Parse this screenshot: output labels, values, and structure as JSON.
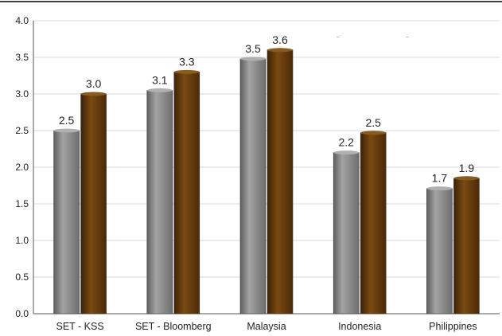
{
  "chart_data": {
    "type": "bar",
    "categories": [
      "SET - KSS",
      "SET - Bloomberg",
      "Malaysia",
      "Indonesia",
      "Philippines"
    ],
    "series": [
      {
        "values": [
          2.5,
          3.05,
          3.48,
          2.2,
          1.71
        ],
        "color": "#8c8c8c"
      },
      {
        "values": [
          3.0,
          3.3,
          3.6,
          2.47,
          1.85
        ],
        "color": "#6b3f0c"
      }
    ],
    "data_labels": [
      [
        "2.5",
        "3.1",
        "3.5",
        "2.2",
        "1.7"
      ],
      [
        "3.0",
        "3.3",
        "3.6",
        "2.5",
        "1.9"
      ]
    ],
    "yticks": [
      "0.0",
      "0.5",
      "1.0",
      "1.5",
      "2.0",
      "2.5",
      "3.0",
      "3.5",
      "4.0"
    ],
    "ylim": [
      0,
      4
    ],
    "ytick_step": 0.5,
    "grid": true,
    "legend_markers": [
      "--",
      "--"
    ]
  }
}
